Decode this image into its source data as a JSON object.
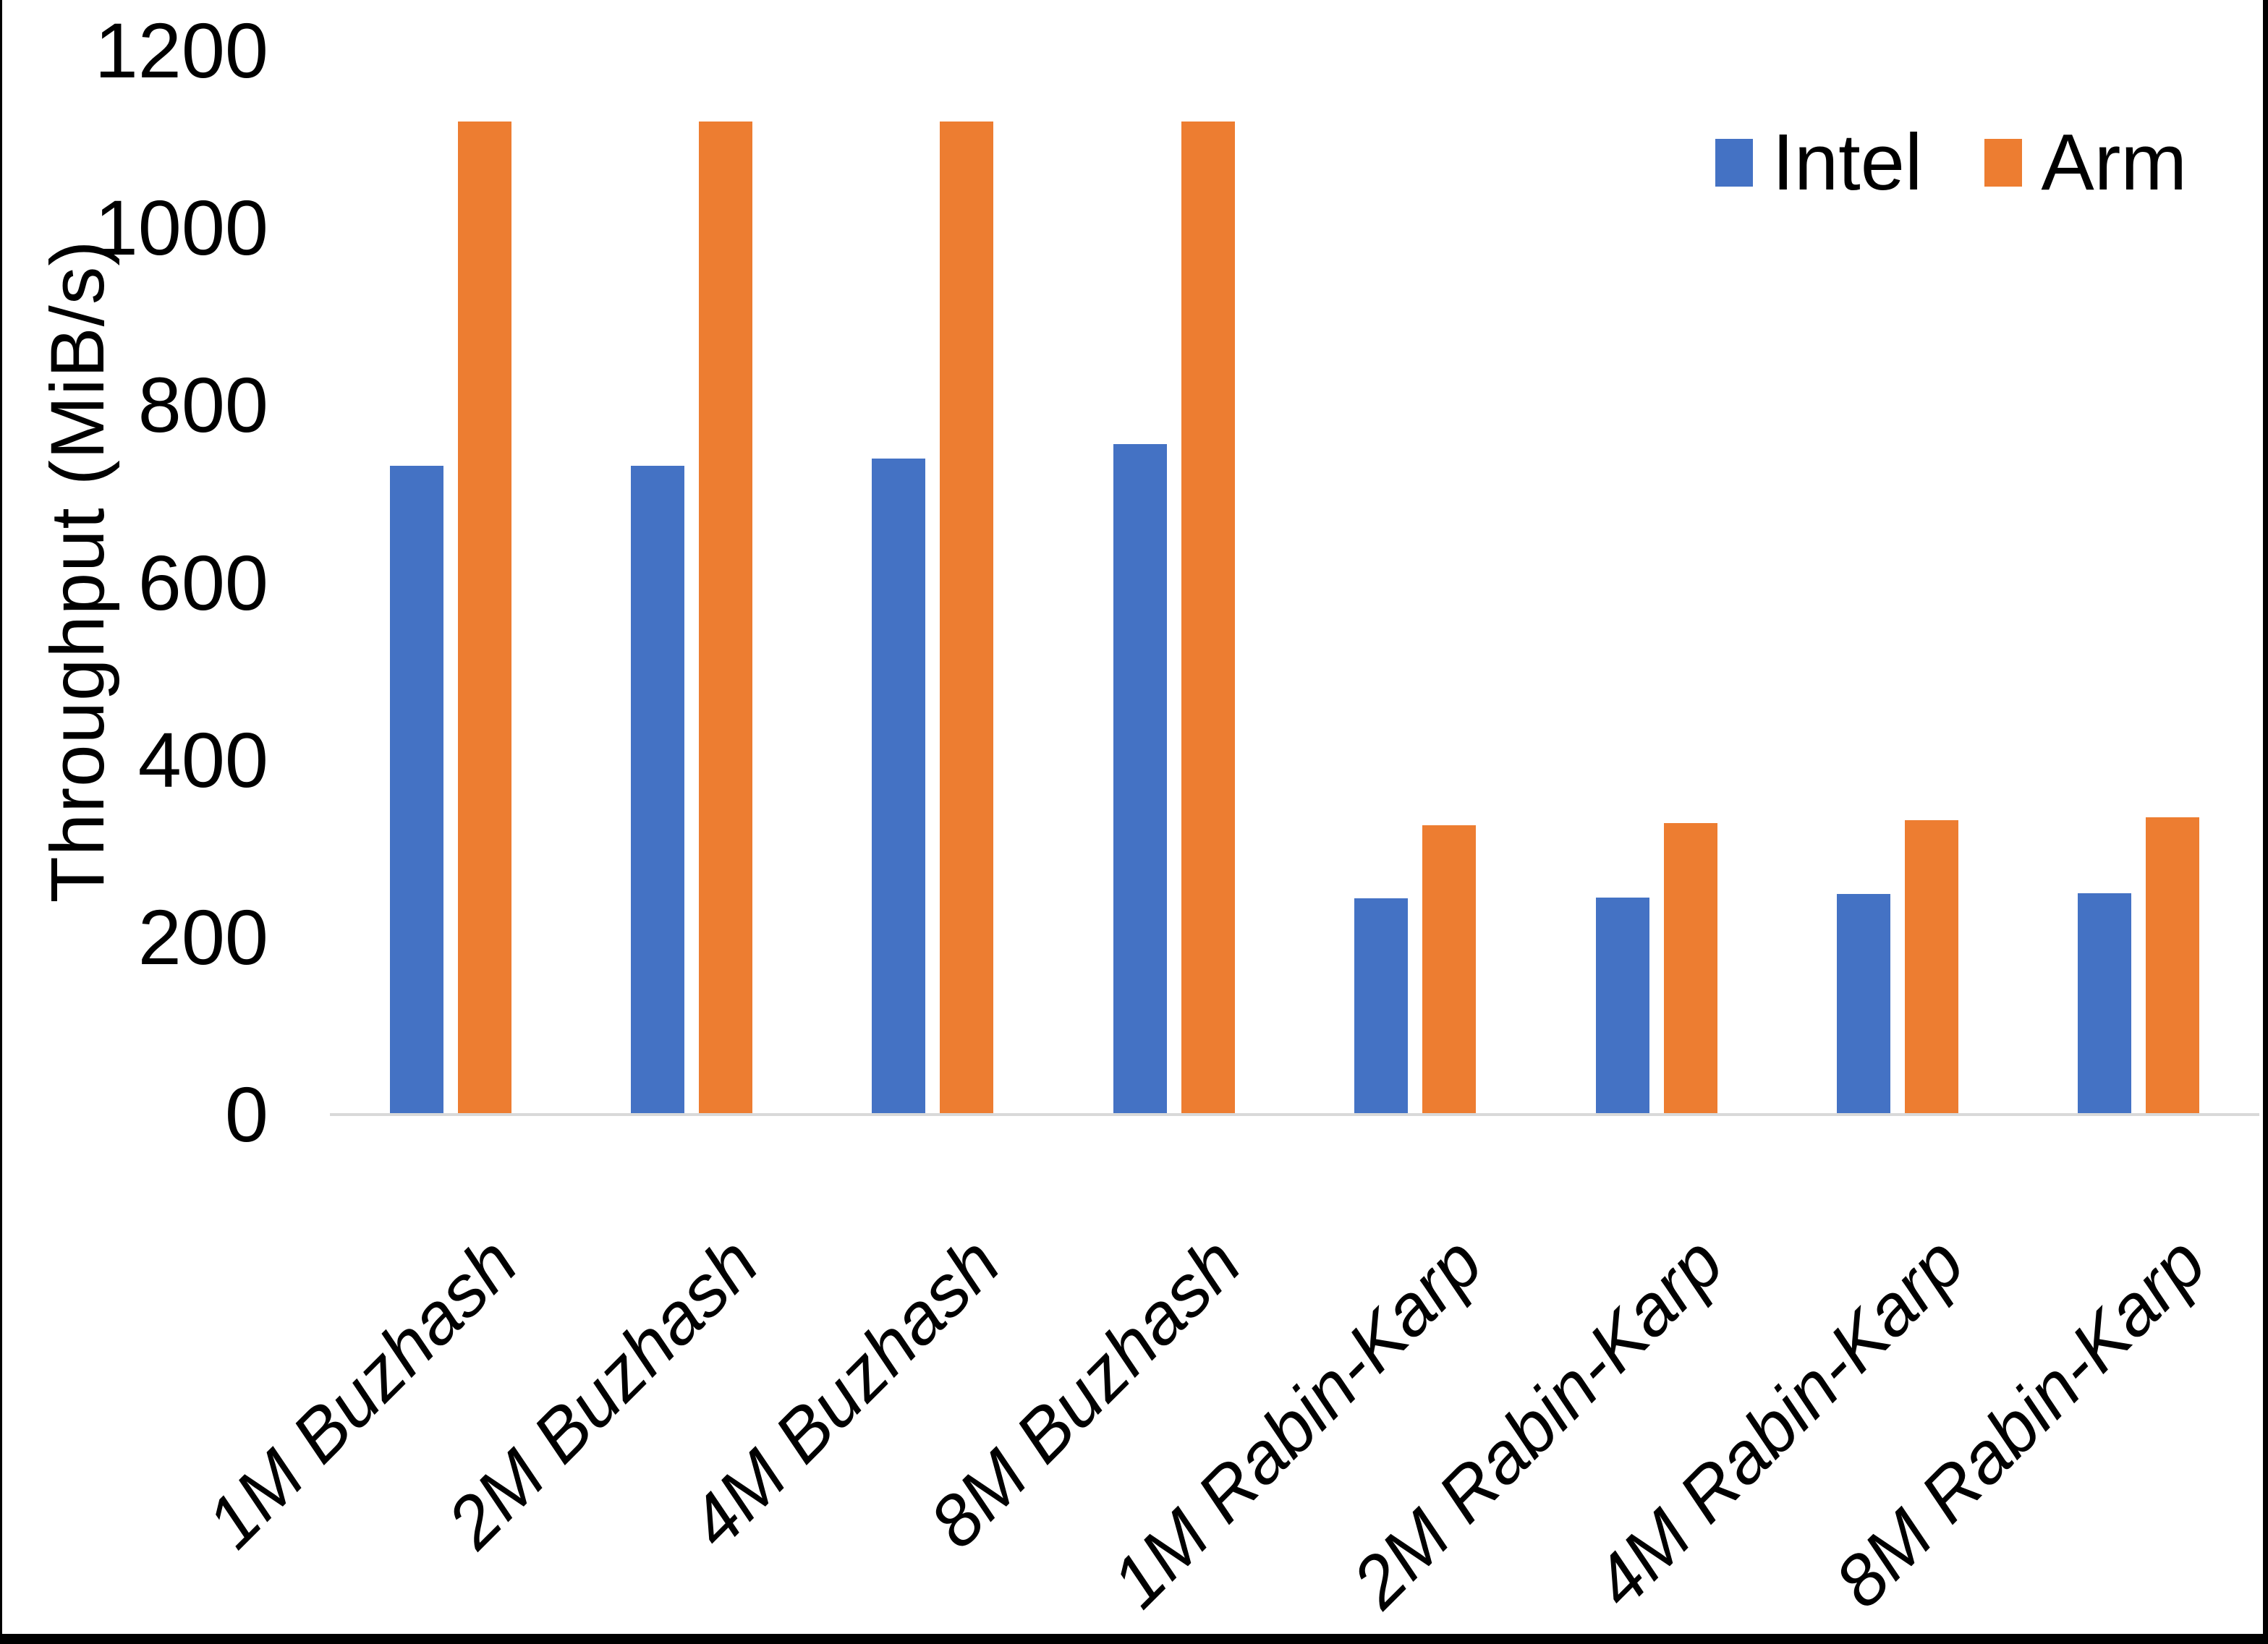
{
  "chart_data": {
    "type": "bar",
    "categories": [
      "1M Buzhash",
      "2M Buzhash",
      "4M Buzhash",
      "8M Buzhash",
      "1M Rabin-Karp",
      "2M Rabin-Karp",
      "4M Rabin-Karp",
      "8M Rabin-Karp"
    ],
    "series": [
      {
        "name": "Intel",
        "color": "#4472C4",
        "values": [
          732,
          732,
          740,
          756,
          244,
          245,
          249,
          250
        ]
      },
      {
        "name": "Arm",
        "color": "#ED7D31",
        "values": [
          1120,
          1120,
          1120,
          1120,
          326,
          329,
          332,
          335
        ]
      }
    ],
    "ylabel": "Throughput (MiB/s)",
    "ylim": [
      0,
      1200
    ],
    "yticks": [
      0,
      200,
      400,
      600,
      800,
      1000,
      1200
    ],
    "grid": false,
    "legend_position": "top-right",
    "axis_line_color": "#D9D9D9",
    "background_color": "#FFFFFF"
  }
}
